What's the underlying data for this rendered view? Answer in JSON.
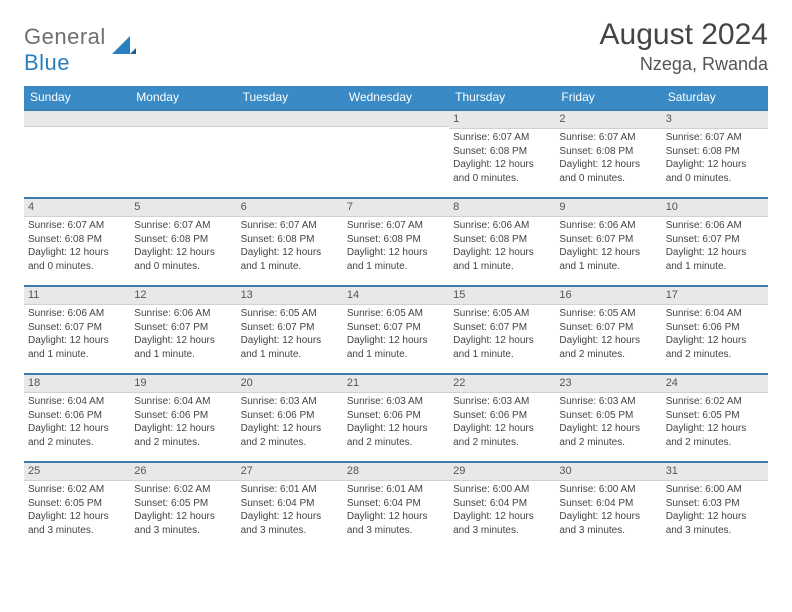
{
  "logo": {
    "general": "General",
    "blue": "Blue"
  },
  "title": "August 2024",
  "location": "Nzega, Rwanda",
  "colors": {
    "header_bg": "#3a8ac5",
    "header_text": "#ffffff",
    "week_border": "#3a7fb0",
    "day_head_bg": "#e8e8e8",
    "day_head_text": "#555555",
    "body_text": "#444444",
    "page_bg": "#ffffff",
    "logo_gray": "#6f6f6f",
    "logo_blue": "#2a7fbf"
  },
  "dow": [
    "Sunday",
    "Monday",
    "Tuesday",
    "Wednesday",
    "Thursday",
    "Friday",
    "Saturday"
  ],
  "weeks": [
    [
      {
        "n": "",
        "sunrise": "",
        "sunset": "",
        "daylight": ""
      },
      {
        "n": "",
        "sunrise": "",
        "sunset": "",
        "daylight": ""
      },
      {
        "n": "",
        "sunrise": "",
        "sunset": "",
        "daylight": ""
      },
      {
        "n": "",
        "sunrise": "",
        "sunset": "",
        "daylight": ""
      },
      {
        "n": "1",
        "sunrise": "Sunrise: 6:07 AM",
        "sunset": "Sunset: 6:08 PM",
        "daylight": "Daylight: 12 hours and 0 minutes."
      },
      {
        "n": "2",
        "sunrise": "Sunrise: 6:07 AM",
        "sunset": "Sunset: 6:08 PM",
        "daylight": "Daylight: 12 hours and 0 minutes."
      },
      {
        "n": "3",
        "sunrise": "Sunrise: 6:07 AM",
        "sunset": "Sunset: 6:08 PM",
        "daylight": "Daylight: 12 hours and 0 minutes."
      }
    ],
    [
      {
        "n": "4",
        "sunrise": "Sunrise: 6:07 AM",
        "sunset": "Sunset: 6:08 PM",
        "daylight": "Daylight: 12 hours and 0 minutes."
      },
      {
        "n": "5",
        "sunrise": "Sunrise: 6:07 AM",
        "sunset": "Sunset: 6:08 PM",
        "daylight": "Daylight: 12 hours and 0 minutes."
      },
      {
        "n": "6",
        "sunrise": "Sunrise: 6:07 AM",
        "sunset": "Sunset: 6:08 PM",
        "daylight": "Daylight: 12 hours and 1 minute."
      },
      {
        "n": "7",
        "sunrise": "Sunrise: 6:07 AM",
        "sunset": "Sunset: 6:08 PM",
        "daylight": "Daylight: 12 hours and 1 minute."
      },
      {
        "n": "8",
        "sunrise": "Sunrise: 6:06 AM",
        "sunset": "Sunset: 6:08 PM",
        "daylight": "Daylight: 12 hours and 1 minute."
      },
      {
        "n": "9",
        "sunrise": "Sunrise: 6:06 AM",
        "sunset": "Sunset: 6:07 PM",
        "daylight": "Daylight: 12 hours and 1 minute."
      },
      {
        "n": "10",
        "sunrise": "Sunrise: 6:06 AM",
        "sunset": "Sunset: 6:07 PM",
        "daylight": "Daylight: 12 hours and 1 minute."
      }
    ],
    [
      {
        "n": "11",
        "sunrise": "Sunrise: 6:06 AM",
        "sunset": "Sunset: 6:07 PM",
        "daylight": "Daylight: 12 hours and 1 minute."
      },
      {
        "n": "12",
        "sunrise": "Sunrise: 6:06 AM",
        "sunset": "Sunset: 6:07 PM",
        "daylight": "Daylight: 12 hours and 1 minute."
      },
      {
        "n": "13",
        "sunrise": "Sunrise: 6:05 AM",
        "sunset": "Sunset: 6:07 PM",
        "daylight": "Daylight: 12 hours and 1 minute."
      },
      {
        "n": "14",
        "sunrise": "Sunrise: 6:05 AM",
        "sunset": "Sunset: 6:07 PM",
        "daylight": "Daylight: 12 hours and 1 minute."
      },
      {
        "n": "15",
        "sunrise": "Sunrise: 6:05 AM",
        "sunset": "Sunset: 6:07 PM",
        "daylight": "Daylight: 12 hours and 1 minute."
      },
      {
        "n": "16",
        "sunrise": "Sunrise: 6:05 AM",
        "sunset": "Sunset: 6:07 PM",
        "daylight": "Daylight: 12 hours and 2 minutes."
      },
      {
        "n": "17",
        "sunrise": "Sunrise: 6:04 AM",
        "sunset": "Sunset: 6:06 PM",
        "daylight": "Daylight: 12 hours and 2 minutes."
      }
    ],
    [
      {
        "n": "18",
        "sunrise": "Sunrise: 6:04 AM",
        "sunset": "Sunset: 6:06 PM",
        "daylight": "Daylight: 12 hours and 2 minutes."
      },
      {
        "n": "19",
        "sunrise": "Sunrise: 6:04 AM",
        "sunset": "Sunset: 6:06 PM",
        "daylight": "Daylight: 12 hours and 2 minutes."
      },
      {
        "n": "20",
        "sunrise": "Sunrise: 6:03 AM",
        "sunset": "Sunset: 6:06 PM",
        "daylight": "Daylight: 12 hours and 2 minutes."
      },
      {
        "n": "21",
        "sunrise": "Sunrise: 6:03 AM",
        "sunset": "Sunset: 6:06 PM",
        "daylight": "Daylight: 12 hours and 2 minutes."
      },
      {
        "n": "22",
        "sunrise": "Sunrise: 6:03 AM",
        "sunset": "Sunset: 6:06 PM",
        "daylight": "Daylight: 12 hours and 2 minutes."
      },
      {
        "n": "23",
        "sunrise": "Sunrise: 6:03 AM",
        "sunset": "Sunset: 6:05 PM",
        "daylight": "Daylight: 12 hours and 2 minutes."
      },
      {
        "n": "24",
        "sunrise": "Sunrise: 6:02 AM",
        "sunset": "Sunset: 6:05 PM",
        "daylight": "Daylight: 12 hours and 2 minutes."
      }
    ],
    [
      {
        "n": "25",
        "sunrise": "Sunrise: 6:02 AM",
        "sunset": "Sunset: 6:05 PM",
        "daylight": "Daylight: 12 hours and 3 minutes."
      },
      {
        "n": "26",
        "sunrise": "Sunrise: 6:02 AM",
        "sunset": "Sunset: 6:05 PM",
        "daylight": "Daylight: 12 hours and 3 minutes."
      },
      {
        "n": "27",
        "sunrise": "Sunrise: 6:01 AM",
        "sunset": "Sunset: 6:04 PM",
        "daylight": "Daylight: 12 hours and 3 minutes."
      },
      {
        "n": "28",
        "sunrise": "Sunrise: 6:01 AM",
        "sunset": "Sunset: 6:04 PM",
        "daylight": "Daylight: 12 hours and 3 minutes."
      },
      {
        "n": "29",
        "sunrise": "Sunrise: 6:00 AM",
        "sunset": "Sunset: 6:04 PM",
        "daylight": "Daylight: 12 hours and 3 minutes."
      },
      {
        "n": "30",
        "sunrise": "Sunrise: 6:00 AM",
        "sunset": "Sunset: 6:04 PM",
        "daylight": "Daylight: 12 hours and 3 minutes."
      },
      {
        "n": "31",
        "sunrise": "Sunrise: 6:00 AM",
        "sunset": "Sunset: 6:03 PM",
        "daylight": "Daylight: 12 hours and 3 minutes."
      }
    ]
  ]
}
